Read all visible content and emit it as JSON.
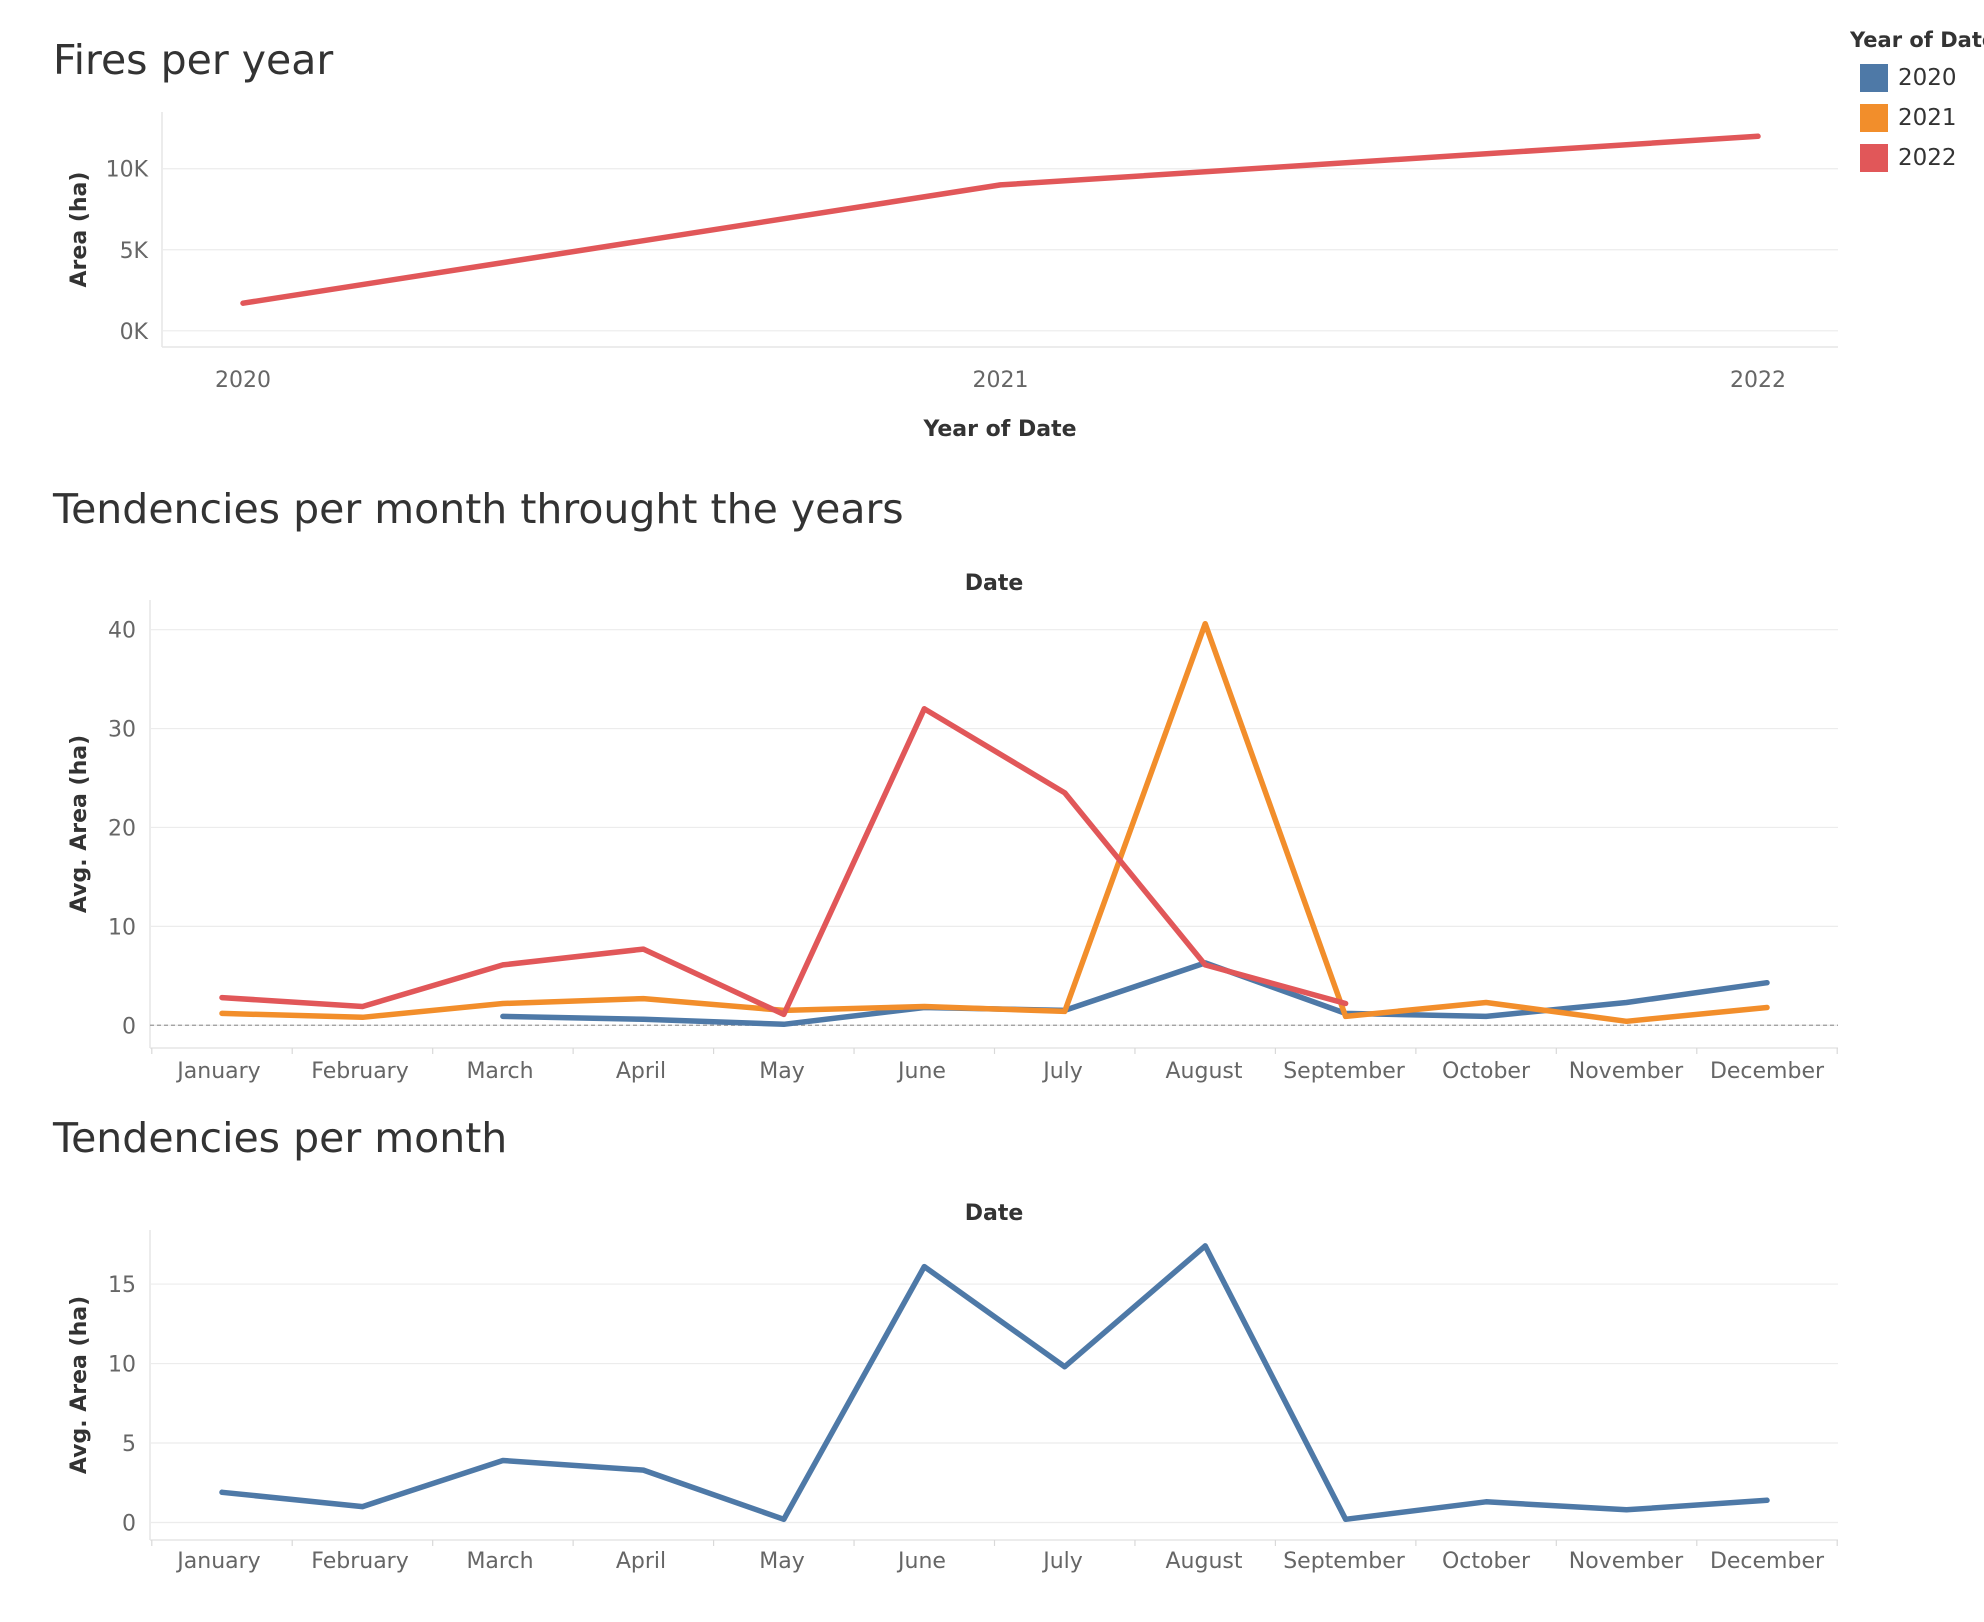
{
  "titles": {
    "chart1": "Fires per year",
    "chart2": "Tendencies per month throught the years",
    "chart3": "Tendencies per month"
  },
  "legend": {
    "title": "Year of Date",
    "items": [
      {
        "label": "2020",
        "color": "#4e79a7"
      },
      {
        "label": "2021",
        "color": "#f28e2b"
      },
      {
        "label": "2022",
        "color": "#e15759"
      }
    ]
  },
  "chart_data": [
    {
      "type": "line",
      "title": "Fires per year",
      "xlabel": "Year of Date",
      "ylabel": "Area (ha)",
      "categories": [
        "2020",
        "2021",
        "2022"
      ],
      "series": [
        {
          "values": [
            1700,
            9000,
            12000
          ],
          "color": "#e15759"
        }
      ],
      "ylim": [
        -1000,
        13500
      ],
      "yticks": [
        0,
        5000,
        10000
      ],
      "ytick_labels": [
        "0K",
        "5K",
        "10K"
      ],
      "grid": true
    },
    {
      "type": "line",
      "title": "Tendencies per month throught the years",
      "xlabel_top": "Date",
      "ylabel": "Avg. Area (ha)",
      "categories": [
        "January",
        "February",
        "March",
        "April",
        "May",
        "June",
        "July",
        "August",
        "September",
        "October",
        "November",
        "December"
      ],
      "series": [
        {
          "name": "2020",
          "color": "#4e79a7",
          "values": [
            null,
            null,
            0.9,
            0.6,
            0.1,
            1.8,
            1.5,
            6.3,
            1.2,
            0.9,
            2.3,
            4.3
          ]
        },
        {
          "name": "2021",
          "color": "#f28e2b",
          "values": [
            1.2,
            0.8,
            2.2,
            2.7,
            1.5,
            1.9,
            1.4,
            40.6,
            0.9,
            2.3,
            0.4,
            1.8
          ]
        },
        {
          "name": "2022",
          "color": "#e15759",
          "values": [
            2.8,
            1.9,
            6.1,
            7.7,
            1.1,
            32.0,
            23.5,
            6.1,
            2.2,
            null,
            null,
            null
          ]
        }
      ],
      "ylim": [
        -2.3,
        43
      ],
      "yticks": [
        0,
        10,
        20,
        30,
        40
      ],
      "zero_line": true,
      "grid": true
    },
    {
      "type": "line",
      "title": "Tendencies per month",
      "xlabel_top": "Date",
      "ylabel": "Avg. Area (ha)",
      "categories": [
        "January",
        "February",
        "March",
        "April",
        "May",
        "June",
        "July",
        "August",
        "September",
        "October",
        "November",
        "December"
      ],
      "series": [
        {
          "color": "#4e79a7",
          "values": [
            1.9,
            1.0,
            3.9,
            3.3,
            0.2,
            16.1,
            9.8,
            17.4,
            0.2,
            1.3,
            0.8,
            1.4
          ]
        }
      ],
      "ylim": [
        -1.1,
        18.4
      ],
      "yticks": [
        0,
        5,
        10,
        15
      ],
      "grid": true
    }
  ]
}
